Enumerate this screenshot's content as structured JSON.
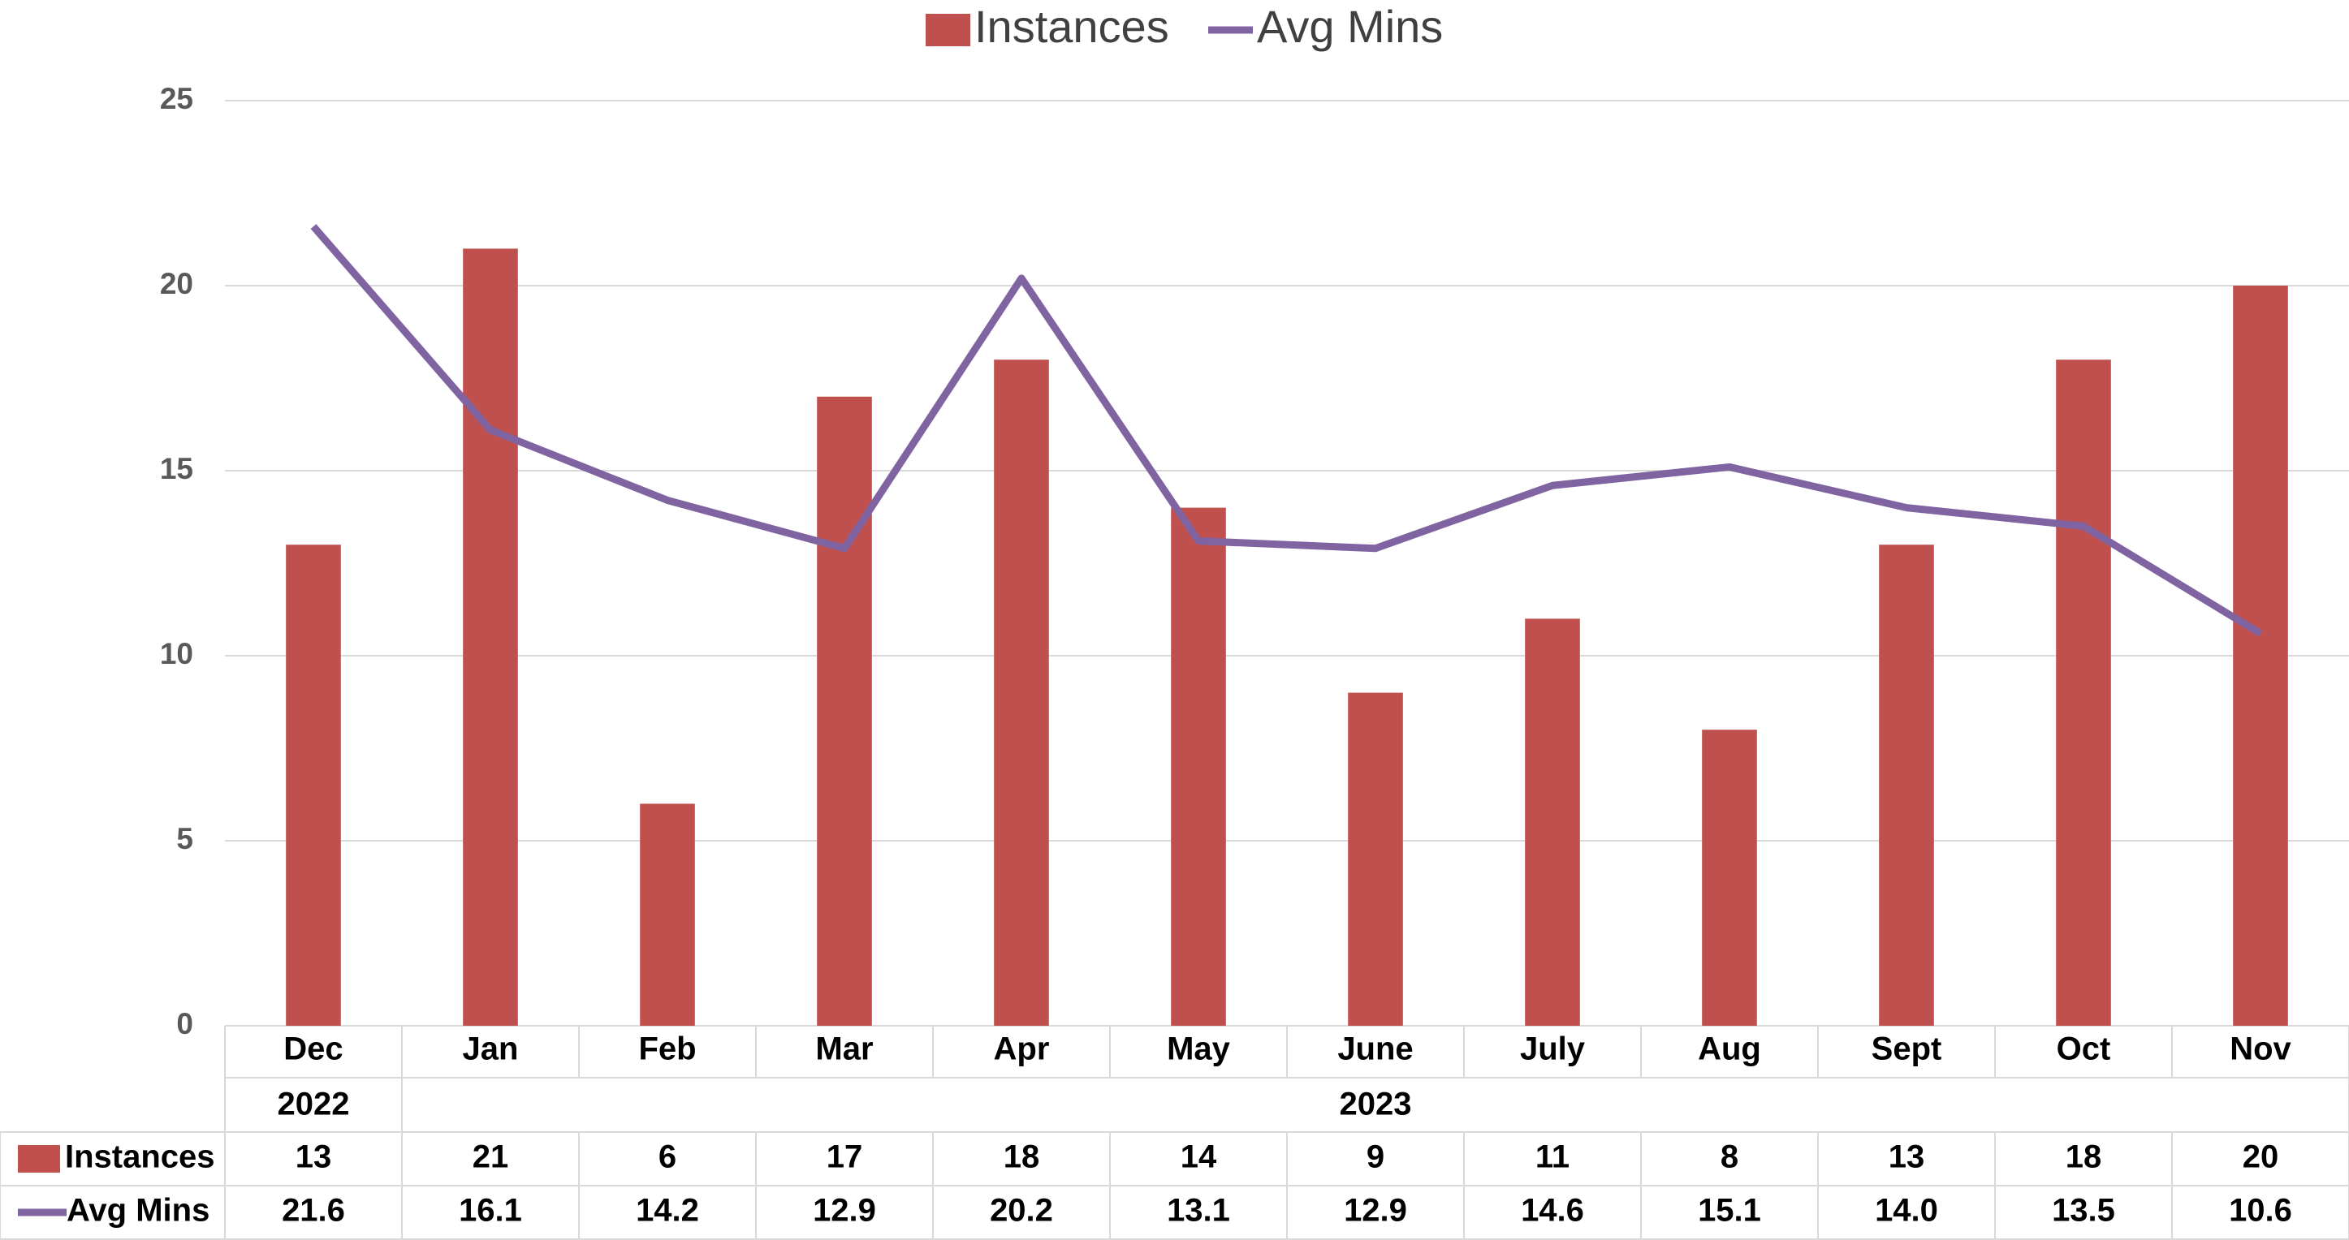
{
  "chart_data": {
    "type": "bar",
    "categories": [
      "Dec",
      "Jan",
      "Feb",
      "Mar",
      "Apr",
      "May",
      "June",
      "July",
      "Aug",
      "Sept",
      "Oct",
      "Nov"
    ],
    "groups": [
      {
        "label": "2022",
        "count": 1
      },
      {
        "label": "2023",
        "count": 11
      }
    ],
    "series": [
      {
        "name": "Instances",
        "type": "bar",
        "color": "#c0504d",
        "values": [
          13,
          21,
          6,
          17,
          18,
          14,
          9,
          11,
          8,
          13,
          18,
          20
        ]
      },
      {
        "name": "Avg Mins",
        "type": "line",
        "color": "#8064a2",
        "values": [
          21.6,
          16.1,
          14.2,
          12.9,
          20.2,
          13.1,
          12.9,
          14.6,
          15.1,
          14,
          13.5,
          10.6
        ],
        "value_labels": [
          "21.6",
          "16.1",
          "14.2",
          "12.9",
          "20.2",
          "13.1",
          "12.9",
          "14.6",
          "15.1",
          "14.0",
          "13.5",
          "10.6"
        ]
      }
    ],
    "ylim": [
      0,
      25
    ],
    "yticks": [
      0,
      5,
      10,
      15,
      20,
      25
    ],
    "grid": true,
    "legend": "top",
    "data_table": true
  }
}
